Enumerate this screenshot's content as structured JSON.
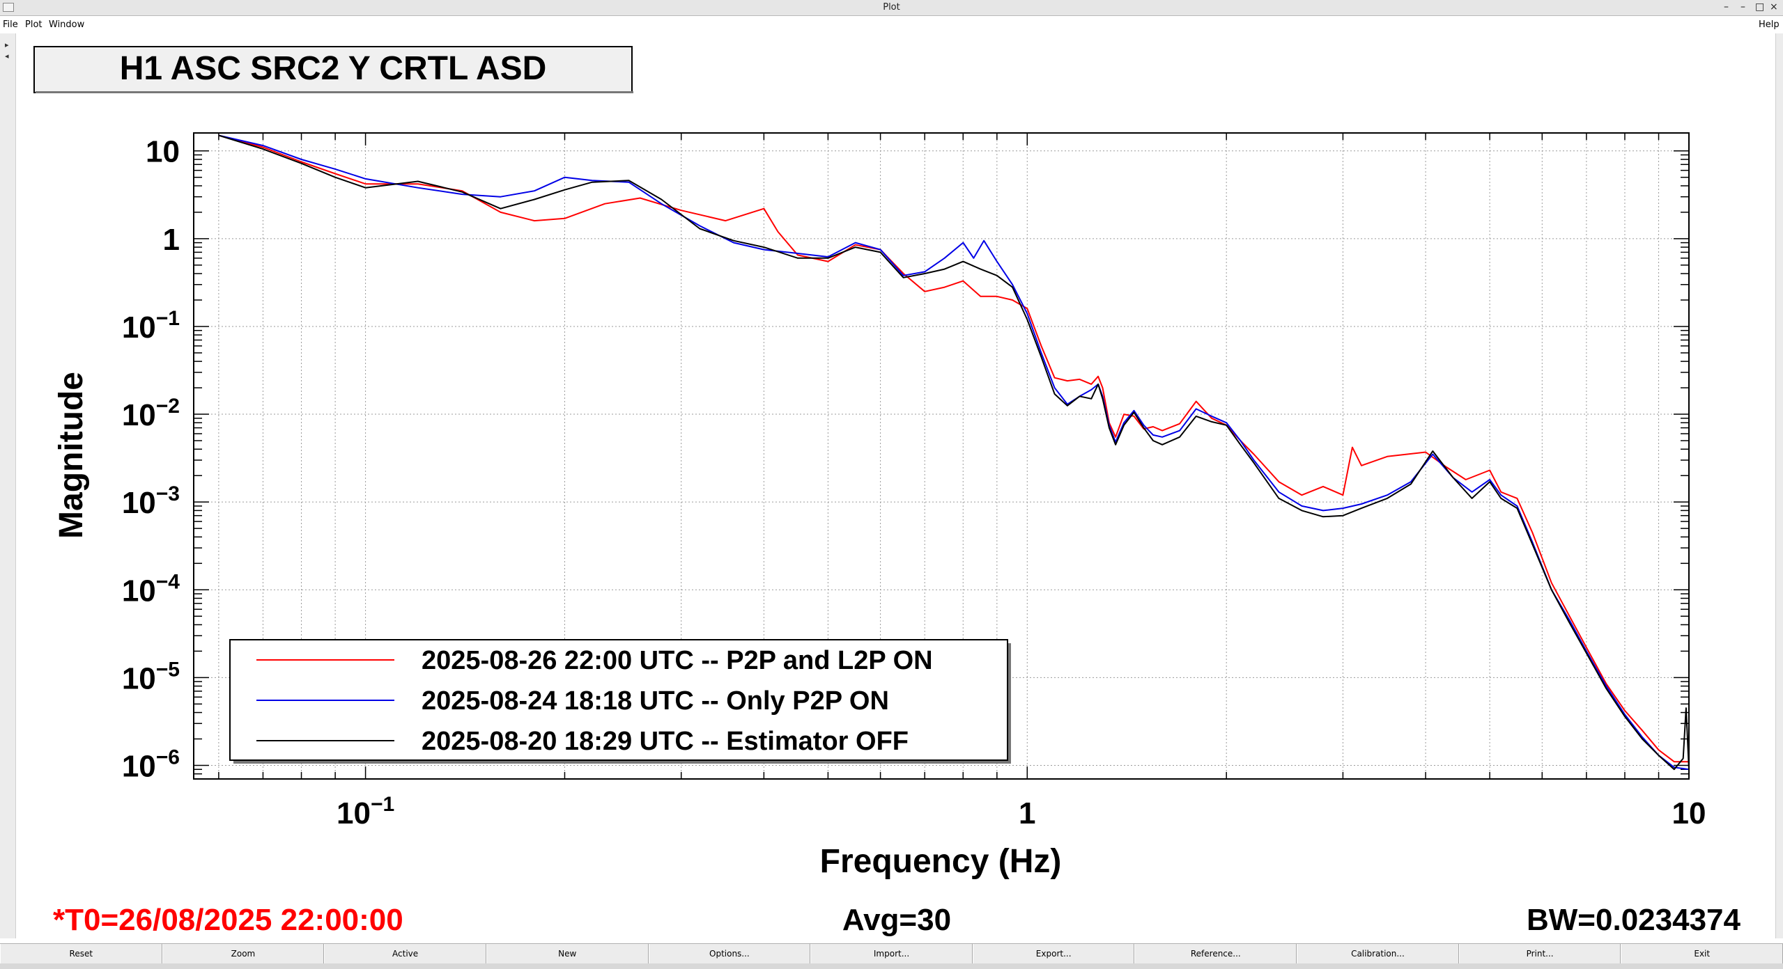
{
  "window": {
    "title": "Plot",
    "buttons": [
      "–",
      "–",
      "□",
      "×"
    ]
  },
  "menu": {
    "file": "File",
    "plot": "Plot",
    "window": "Window",
    "help": "Help"
  },
  "toolbar_buttons": [
    "Reset",
    "Zoom",
    "Active",
    "New",
    "Options...",
    "Import...",
    "Export...",
    "Reference...",
    "Calibration...",
    "Print...",
    "Exit"
  ],
  "status": {
    "t0": "*T0=26/08/2025 22:00:00",
    "avg": "Avg=30",
    "bw": "BW=0.0234374"
  },
  "colors": {
    "red": "#ff0000",
    "blue": "#0000e6",
    "black": "#000000"
  },
  "chart_data": {
    "type": "line",
    "title": "H1 ASC SRC2 Y CRTL ASD",
    "xlabel": "Frequency (Hz)",
    "ylabel": "Magnitude",
    "xscale": "log",
    "yscale": "log",
    "xlim": [
      0.055,
      10
    ],
    "ylim": [
      7e-07,
      16
    ],
    "xticks": [
      {
        "v": 0.1,
        "label": "10",
        "exp": "−1"
      },
      {
        "v": 1,
        "label": "1",
        "exp": ""
      },
      {
        "v": 10,
        "label": "10",
        "exp": ""
      }
    ],
    "yticks": [
      {
        "v": 10,
        "label": "10",
        "exp": ""
      },
      {
        "v": 1,
        "label": "1",
        "exp": ""
      },
      {
        "v": 0.1,
        "label": "10",
        "exp": "−1"
      },
      {
        "v": 0.01,
        "label": "10",
        "exp": "−2"
      },
      {
        "v": 0.001,
        "label": "10",
        "exp": "−3"
      },
      {
        "v": 0.0001,
        "label": "10",
        "exp": "−4"
      },
      {
        "v": 1e-05,
        "label": "10",
        "exp": "−5"
      },
      {
        "v": 1e-06,
        "label": "10",
        "exp": "−6"
      }
    ],
    "grid": true,
    "legend": "bottom-left",
    "series": [
      {
        "name": "2025-08-26 22:00 UTC -- P2P and L2P ON",
        "color": "#ff0000",
        "points": [
          [
            0.06,
            15
          ],
          [
            0.07,
            11
          ],
          [
            0.08,
            7.5
          ],
          [
            0.09,
            5.5
          ],
          [
            0.1,
            4.2
          ],
          [
            0.12,
            4.2
          ],
          [
            0.14,
            3.5
          ],
          [
            0.16,
            2.0
          ],
          [
            0.18,
            1.6
          ],
          [
            0.2,
            1.7
          ],
          [
            0.23,
            2.5
          ],
          [
            0.26,
            2.9
          ],
          [
            0.3,
            2.1
          ],
          [
            0.35,
            1.6
          ],
          [
            0.4,
            2.2
          ],
          [
            0.42,
            1.2
          ],
          [
            0.45,
            0.65
          ],
          [
            0.5,
            0.55
          ],
          [
            0.55,
            0.85
          ],
          [
            0.6,
            0.75
          ],
          [
            0.65,
            0.4
          ],
          [
            0.7,
            0.25
          ],
          [
            0.75,
            0.28
          ],
          [
            0.8,
            0.33
          ],
          [
            0.85,
            0.22
          ],
          [
            0.9,
            0.22
          ],
          [
            0.95,
            0.2
          ],
          [
            1.0,
            0.16
          ],
          [
            1.05,
            0.06
          ],
          [
            1.1,
            0.026
          ],
          [
            1.15,
            0.024
          ],
          [
            1.2,
            0.025
          ],
          [
            1.25,
            0.022
          ],
          [
            1.28,
            0.027
          ],
          [
            1.3,
            0.02
          ],
          [
            1.33,
            0.008
          ],
          [
            1.36,
            0.0055
          ],
          [
            1.4,
            0.01
          ],
          [
            1.45,
            0.0095
          ],
          [
            1.5,
            0.0068
          ],
          [
            1.55,
            0.0072
          ],
          [
            1.6,
            0.0065
          ],
          [
            1.7,
            0.0078
          ],
          [
            1.8,
            0.014
          ],
          [
            1.9,
            0.009
          ],
          [
            2.0,
            0.0075
          ],
          [
            2.1,
            0.005
          ],
          [
            2.2,
            0.0035
          ],
          [
            2.4,
            0.0017
          ],
          [
            2.6,
            0.0012
          ],
          [
            2.8,
            0.0015
          ],
          [
            3.0,
            0.0012
          ],
          [
            3.1,
            0.0042
          ],
          [
            3.2,
            0.0026
          ],
          [
            3.5,
            0.0033
          ],
          [
            4.0,
            0.0037
          ],
          [
            4.3,
            0.0025
          ],
          [
            4.6,
            0.0018
          ],
          [
            5.0,
            0.0023
          ],
          [
            5.2,
            0.0013
          ],
          [
            5.5,
            0.0011
          ],
          [
            5.8,
            0.00045
          ],
          [
            6.2,
            0.00012
          ],
          [
            6.6,
            5e-05
          ],
          [
            7.0,
            2.2e-05
          ],
          [
            7.5,
            8.5e-06
          ],
          [
            8.0,
            4.2e-06
          ],
          [
            8.5,
            2.5e-06
          ],
          [
            9.0,
            1.5e-06
          ],
          [
            9.5,
            1.1e-06
          ],
          [
            10.0,
            1.1e-06
          ]
        ]
      },
      {
        "name": "2025-08-24 18:18 UTC -- Only P2P ON",
        "color": "#0000e6",
        "points": [
          [
            0.06,
            15
          ],
          [
            0.07,
            11.5
          ],
          [
            0.08,
            8
          ],
          [
            0.09,
            6.2
          ],
          [
            0.1,
            4.8
          ],
          [
            0.12,
            3.8
          ],
          [
            0.14,
            3.2
          ],
          [
            0.16,
            3.0
          ],
          [
            0.18,
            3.5
          ],
          [
            0.2,
            5.0
          ],
          [
            0.22,
            4.6
          ],
          [
            0.25,
            4.4
          ],
          [
            0.28,
            2.5
          ],
          [
            0.32,
            1.4
          ],
          [
            0.36,
            0.9
          ],
          [
            0.4,
            0.75
          ],
          [
            0.45,
            0.68
          ],
          [
            0.5,
            0.62
          ],
          [
            0.55,
            0.9
          ],
          [
            0.6,
            0.75
          ],
          [
            0.65,
            0.38
          ],
          [
            0.7,
            0.42
          ],
          [
            0.75,
            0.6
          ],
          [
            0.8,
            0.9
          ],
          [
            0.83,
            0.6
          ],
          [
            0.86,
            0.95
          ],
          [
            0.9,
            0.55
          ],
          [
            0.95,
            0.3
          ],
          [
            1.0,
            0.14
          ],
          [
            1.05,
            0.05
          ],
          [
            1.1,
            0.02
          ],
          [
            1.15,
            0.013
          ],
          [
            1.2,
            0.016
          ],
          [
            1.25,
            0.019
          ],
          [
            1.28,
            0.022
          ],
          [
            1.3,
            0.016
          ],
          [
            1.33,
            0.0075
          ],
          [
            1.36,
            0.0048
          ],
          [
            1.4,
            0.008
          ],
          [
            1.45,
            0.011
          ],
          [
            1.5,
            0.0075
          ],
          [
            1.55,
            0.0058
          ],
          [
            1.6,
            0.0055
          ],
          [
            1.7,
            0.0065
          ],
          [
            1.8,
            0.0115
          ],
          [
            1.9,
            0.0095
          ],
          [
            2.0,
            0.008
          ],
          [
            2.1,
            0.005
          ],
          [
            2.2,
            0.003
          ],
          [
            2.4,
            0.0013
          ],
          [
            2.6,
            0.0009
          ],
          [
            2.8,
            0.0008
          ],
          [
            3.0,
            0.00085
          ],
          [
            3.2,
            0.00095
          ],
          [
            3.5,
            0.0012
          ],
          [
            3.8,
            0.0017
          ],
          [
            4.1,
            0.0035
          ],
          [
            4.4,
            0.0019
          ],
          [
            4.7,
            0.0013
          ],
          [
            5.0,
            0.0018
          ],
          [
            5.2,
            0.0012
          ],
          [
            5.5,
            0.0009
          ],
          [
            5.8,
            0.00035
          ],
          [
            6.2,
            0.0001
          ],
          [
            6.6,
            4.5e-05
          ],
          [
            7.0,
            2e-05
          ],
          [
            7.5,
            8e-06
          ],
          [
            8.0,
            3.8e-06
          ],
          [
            8.5,
            2.1e-06
          ],
          [
            9.0,
            1.3e-06
          ],
          [
            9.5,
            9.5e-07
          ],
          [
            10.0,
            9e-07
          ]
        ]
      },
      {
        "name": "2025-08-20 18:29 UTC -- Estimator OFF",
        "color": "#000000",
        "points": [
          [
            0.06,
            15
          ],
          [
            0.07,
            10.5
          ],
          [
            0.08,
            7.2
          ],
          [
            0.09,
            5
          ],
          [
            0.1,
            3.8
          ],
          [
            0.12,
            4.5
          ],
          [
            0.14,
            3.4
          ],
          [
            0.16,
            2.2
          ],
          [
            0.18,
            2.8
          ],
          [
            0.2,
            3.6
          ],
          [
            0.22,
            4.4
          ],
          [
            0.25,
            4.6
          ],
          [
            0.28,
            2.8
          ],
          [
            0.32,
            1.3
          ],
          [
            0.36,
            0.95
          ],
          [
            0.4,
            0.8
          ],
          [
            0.45,
            0.6
          ],
          [
            0.5,
            0.6
          ],
          [
            0.55,
            0.8
          ],
          [
            0.6,
            0.7
          ],
          [
            0.65,
            0.36
          ],
          [
            0.7,
            0.4
          ],
          [
            0.75,
            0.45
          ],
          [
            0.8,
            0.55
          ],
          [
            0.85,
            0.45
          ],
          [
            0.9,
            0.38
          ],
          [
            0.95,
            0.28
          ],
          [
            1.0,
            0.12
          ],
          [
            1.05,
            0.045
          ],
          [
            1.1,
            0.017
          ],
          [
            1.15,
            0.0125
          ],
          [
            1.2,
            0.016
          ],
          [
            1.25,
            0.015
          ],
          [
            1.28,
            0.022
          ],
          [
            1.3,
            0.015
          ],
          [
            1.33,
            0.007
          ],
          [
            1.36,
            0.0045
          ],
          [
            1.4,
            0.0075
          ],
          [
            1.45,
            0.0105
          ],
          [
            1.5,
            0.007
          ],
          [
            1.55,
            0.005
          ],
          [
            1.6,
            0.0045
          ],
          [
            1.7,
            0.0055
          ],
          [
            1.8,
            0.0095
          ],
          [
            1.9,
            0.0082
          ],
          [
            2.0,
            0.0075
          ],
          [
            2.1,
            0.0045
          ],
          [
            2.2,
            0.0028
          ],
          [
            2.4,
            0.0011
          ],
          [
            2.6,
            0.0008
          ],
          [
            2.8,
            0.00068
          ],
          [
            3.0,
            0.0007
          ],
          [
            3.2,
            0.00085
          ],
          [
            3.5,
            0.0011
          ],
          [
            3.8,
            0.0016
          ],
          [
            4.1,
            0.0038
          ],
          [
            4.4,
            0.0019
          ],
          [
            4.7,
            0.0011
          ],
          [
            5.0,
            0.0017
          ],
          [
            5.2,
            0.0011
          ],
          [
            5.5,
            0.00085
          ],
          [
            5.8,
            0.00033
          ],
          [
            6.2,
            0.0001
          ],
          [
            6.6,
            4.2e-05
          ],
          [
            7.0,
            1.9e-05
          ],
          [
            7.5,
            7.5e-06
          ],
          [
            8.0,
            3.6e-06
          ],
          [
            8.5,
            2e-06
          ],
          [
            9.0,
            1.3e-06
          ],
          [
            9.5,
            9e-07
          ],
          [
            9.8,
            1.2e-06
          ],
          [
            9.9,
            4.5e-06
          ],
          [
            10.0,
            9e-07
          ]
        ]
      }
    ]
  }
}
